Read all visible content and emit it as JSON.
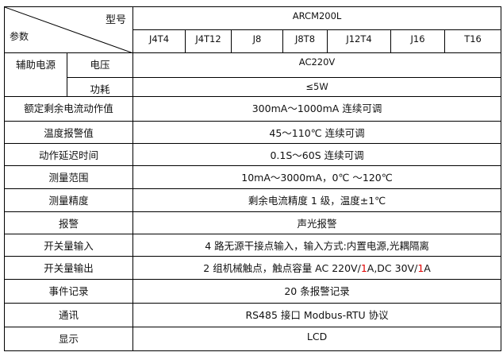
{
  "header": {
    "model_label": "型号",
    "param_label": "参数",
    "model_name": "ARCM200L",
    "variants": [
      "J4T4",
      "J4T12",
      "J8",
      "J8T8",
      "J12T4",
      "J16",
      "T16"
    ]
  },
  "aux_power": {
    "label": "辅助电源",
    "voltage_label": "电压",
    "voltage_value": "AC220V",
    "power_label": "功耗",
    "power_value": "≤5W"
  },
  "rows": [
    {
      "label": "额定剩余电流动作值",
      "value": "300mA～1000mA 连续可调"
    },
    {
      "label": "温度报警值",
      "value": "45～110℃ 连续可调"
    },
    {
      "label": "动作延迟时间",
      "value": "0.1S～60S 连续可调"
    },
    {
      "label": "测量范围",
      "value": "10mA～3000mA，0℃ ～120℃"
    },
    {
      "label": "测量精度",
      "value": "剩余电流精度 1 级，温度±1℃"
    },
    {
      "label": "报警",
      "value": "声光报警"
    },
    {
      "label": "开关量输入",
      "value": "4 路无源干接点输入，输入方式:内置电源,光耦隔离"
    },
    {
      "label": "开关量输出",
      "value_parts": [
        "2 组机械触点，触点容量 AC 220V/",
        "1",
        "A,DC 30V/",
        "1",
        "A"
      ]
    },
    {
      "label": "事件记录",
      "value": "20 条报警记录"
    },
    {
      "label": "通讯",
      "value": "RS485 接口  Modbus-RTU 协议"
    },
    {
      "label": "显示",
      "value": "LCD"
    }
  ],
  "colors": {
    "highlight": "#e00000",
    "border": "#000000"
  }
}
